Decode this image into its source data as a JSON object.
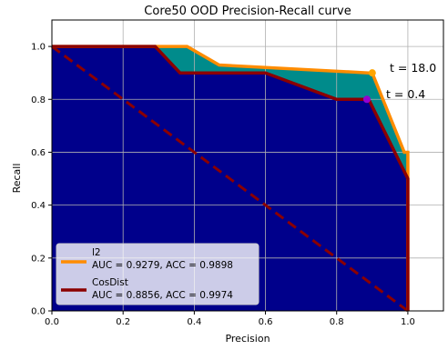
{
  "chart_data": {
    "type": "line",
    "title": "Core50 OOD Precision-Recall curve",
    "xlabel": "Precision",
    "ylabel": "Recall",
    "xlim": [
      0.0,
      1.1
    ],
    "ylim": [
      0.0,
      1.1
    ],
    "xticks": [
      "0.0",
      "0.2",
      "0.4",
      "0.6",
      "0.8",
      "1.0"
    ],
    "yticks": [
      "0.0",
      "0.2",
      "0.4",
      "0.6",
      "0.8",
      "1.0"
    ],
    "grid": true,
    "legend_position": "lower-left",
    "colors": {
      "fill_under": "#00008b",
      "fill_between": "#008b8b",
      "l2": "#ff8c00",
      "cosdist": "#8b0000",
      "l2_marker": "#ffa500",
      "cosdist_marker": "#9400d3"
    },
    "series": [
      {
        "name": "l2",
        "legend_line2": "AUC = 0.9279, ACC = 0.9898",
        "x": [
          0.0,
          0.29,
          0.38,
          0.47,
          0.89,
          0.9,
          0.99,
          1.0,
          1.0
        ],
        "y": [
          1.0,
          1.0,
          1.0,
          0.93,
          0.9,
          0.9,
          0.6,
          0.6,
          0.0
        ]
      },
      {
        "name": "CosDist",
        "legend_line2": "AUC = 0.8856, ACC = 0.9974",
        "x": [
          0.0,
          0.29,
          0.36,
          0.6,
          0.8,
          0.89,
          1.0,
          1.0
        ],
        "y": [
          1.0,
          1.0,
          0.9,
          0.9,
          0.8,
          0.8,
          0.5,
          0.0
        ]
      }
    ],
    "baseline": {
      "x": [
        0.0,
        1.0
      ],
      "y": [
        1.0,
        0.0
      ]
    },
    "annotations": [
      {
        "text": "t = 18.0",
        "x": 0.9,
        "y": 0.9,
        "series": "l2"
      },
      {
        "text": "t = 0.4",
        "x": 0.885,
        "y": 0.8,
        "series": "CosDist"
      }
    ]
  }
}
